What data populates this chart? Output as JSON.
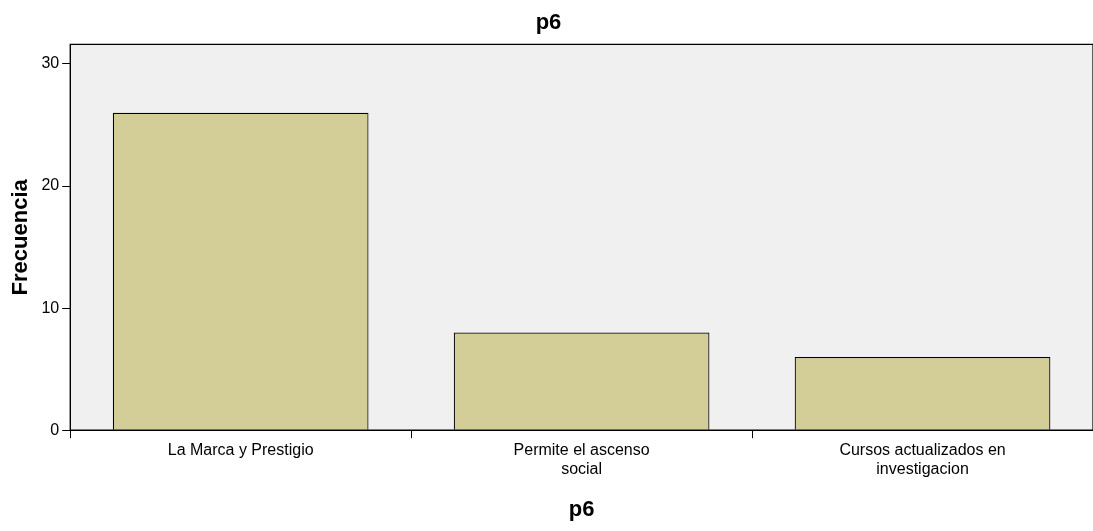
{
  "chart_data": {
    "type": "bar",
    "title": "p6",
    "xlabel": "p6",
    "ylabel": "Frecuencia",
    "categories": [
      "La Marca y Prestigio",
      "Permite el ascenso social",
      "Cursos actualizados en investigacion"
    ],
    "values": [
      26,
      8,
      6
    ],
    "color": "#d3ce97",
    "ylim": [
      0,
      31.6
    ],
    "yticks": [
      0,
      10,
      20,
      30
    ]
  }
}
